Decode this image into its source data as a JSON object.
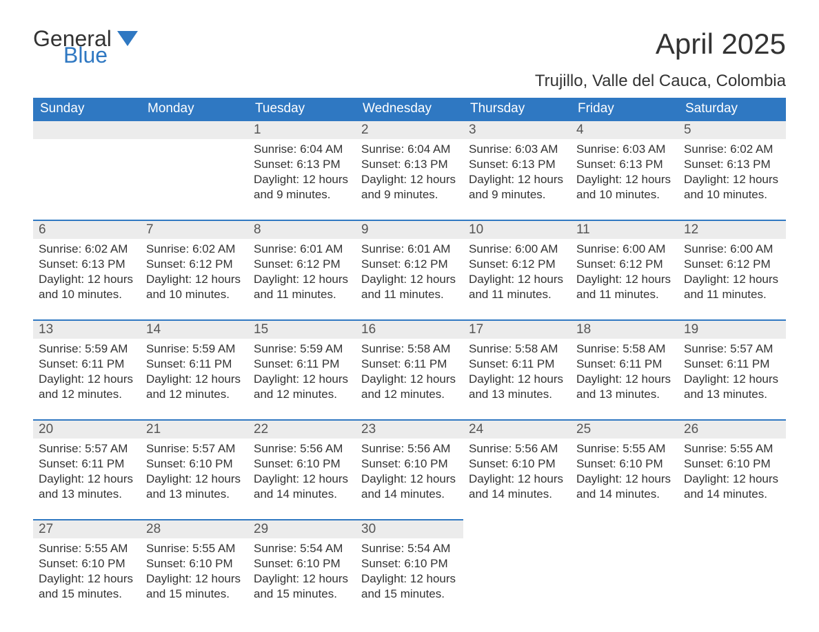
{
  "brand": {
    "word1": "General",
    "word2": "Blue",
    "color_accent": "#2f78c2"
  },
  "title": "April 2025",
  "location": "Trujillo, Valle del Cauca, Colombia",
  "colors": {
    "header_bg": "#2f78c2",
    "header_text": "#ffffff",
    "daynum_bg": "#ececec",
    "border_top": "#2f78c2",
    "body_text": "#333333",
    "background": "#ffffff"
  },
  "layout": {
    "columns": 7,
    "rows": 5,
    "first_day_column_index": 2
  },
  "weekdays": [
    "Sunday",
    "Monday",
    "Tuesday",
    "Wednesday",
    "Thursday",
    "Friday",
    "Saturday"
  ],
  "labels": {
    "sunrise": "Sunrise:",
    "sunset": "Sunset:",
    "daylight": "Daylight:"
  },
  "days": [
    {
      "n": 1,
      "sunrise": "6:04 AM",
      "sunset": "6:13 PM",
      "daylight": "12 hours and 9 minutes."
    },
    {
      "n": 2,
      "sunrise": "6:04 AM",
      "sunset": "6:13 PM",
      "daylight": "12 hours and 9 minutes."
    },
    {
      "n": 3,
      "sunrise": "6:03 AM",
      "sunset": "6:13 PM",
      "daylight": "12 hours and 9 minutes."
    },
    {
      "n": 4,
      "sunrise": "6:03 AM",
      "sunset": "6:13 PM",
      "daylight": "12 hours and 10 minutes."
    },
    {
      "n": 5,
      "sunrise": "6:02 AM",
      "sunset": "6:13 PM",
      "daylight": "12 hours and 10 minutes."
    },
    {
      "n": 6,
      "sunrise": "6:02 AM",
      "sunset": "6:13 PM",
      "daylight": "12 hours and 10 minutes."
    },
    {
      "n": 7,
      "sunrise": "6:02 AM",
      "sunset": "6:12 PM",
      "daylight": "12 hours and 10 minutes."
    },
    {
      "n": 8,
      "sunrise": "6:01 AM",
      "sunset": "6:12 PM",
      "daylight": "12 hours and 11 minutes."
    },
    {
      "n": 9,
      "sunrise": "6:01 AM",
      "sunset": "6:12 PM",
      "daylight": "12 hours and 11 minutes."
    },
    {
      "n": 10,
      "sunrise": "6:00 AM",
      "sunset": "6:12 PM",
      "daylight": "12 hours and 11 minutes."
    },
    {
      "n": 11,
      "sunrise": "6:00 AM",
      "sunset": "6:12 PM",
      "daylight": "12 hours and 11 minutes."
    },
    {
      "n": 12,
      "sunrise": "6:00 AM",
      "sunset": "6:12 PM",
      "daylight": "12 hours and 11 minutes."
    },
    {
      "n": 13,
      "sunrise": "5:59 AM",
      "sunset": "6:11 PM",
      "daylight": "12 hours and 12 minutes."
    },
    {
      "n": 14,
      "sunrise": "5:59 AM",
      "sunset": "6:11 PM",
      "daylight": "12 hours and 12 minutes."
    },
    {
      "n": 15,
      "sunrise": "5:59 AM",
      "sunset": "6:11 PM",
      "daylight": "12 hours and 12 minutes."
    },
    {
      "n": 16,
      "sunrise": "5:58 AM",
      "sunset": "6:11 PM",
      "daylight": "12 hours and 12 minutes."
    },
    {
      "n": 17,
      "sunrise": "5:58 AM",
      "sunset": "6:11 PM",
      "daylight": "12 hours and 13 minutes."
    },
    {
      "n": 18,
      "sunrise": "5:58 AM",
      "sunset": "6:11 PM",
      "daylight": "12 hours and 13 minutes."
    },
    {
      "n": 19,
      "sunrise": "5:57 AM",
      "sunset": "6:11 PM",
      "daylight": "12 hours and 13 minutes."
    },
    {
      "n": 20,
      "sunrise": "5:57 AM",
      "sunset": "6:11 PM",
      "daylight": "12 hours and 13 minutes."
    },
    {
      "n": 21,
      "sunrise": "5:57 AM",
      "sunset": "6:10 PM",
      "daylight": "12 hours and 13 minutes."
    },
    {
      "n": 22,
      "sunrise": "5:56 AM",
      "sunset": "6:10 PM",
      "daylight": "12 hours and 14 minutes."
    },
    {
      "n": 23,
      "sunrise": "5:56 AM",
      "sunset": "6:10 PM",
      "daylight": "12 hours and 14 minutes."
    },
    {
      "n": 24,
      "sunrise": "5:56 AM",
      "sunset": "6:10 PM",
      "daylight": "12 hours and 14 minutes."
    },
    {
      "n": 25,
      "sunrise": "5:55 AM",
      "sunset": "6:10 PM",
      "daylight": "12 hours and 14 minutes."
    },
    {
      "n": 26,
      "sunrise": "5:55 AM",
      "sunset": "6:10 PM",
      "daylight": "12 hours and 14 minutes."
    },
    {
      "n": 27,
      "sunrise": "5:55 AM",
      "sunset": "6:10 PM",
      "daylight": "12 hours and 15 minutes."
    },
    {
      "n": 28,
      "sunrise": "5:55 AM",
      "sunset": "6:10 PM",
      "daylight": "12 hours and 15 minutes."
    },
    {
      "n": 29,
      "sunrise": "5:54 AM",
      "sunset": "6:10 PM",
      "daylight": "12 hours and 15 minutes."
    },
    {
      "n": 30,
      "sunrise": "5:54 AM",
      "sunset": "6:10 PM",
      "daylight": "12 hours and 15 minutes."
    }
  ]
}
